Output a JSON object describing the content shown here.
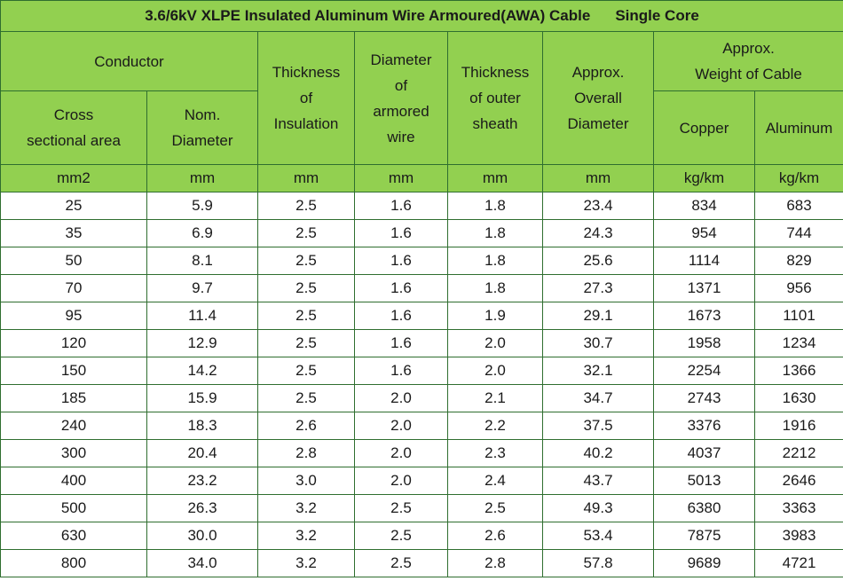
{
  "title": "3.6/6kV XLPE Insulated Aluminum Wire Armoured(AWA) Cable",
  "subtitle": "Single Core",
  "headers": {
    "conductor": "Conductor",
    "cross_sectional_area": [
      "Cross",
      "sectional area"
    ],
    "nom_diameter": [
      "Nom.",
      "Diameter"
    ],
    "thickness_insulation": [
      "Thickness",
      "of",
      "Insulation"
    ],
    "diameter_armored_wire": [
      "Diameter",
      "of",
      "armored",
      "wire"
    ],
    "thickness_outer_sheath": [
      "Thickness",
      "of outer",
      "sheath"
    ],
    "overall_diameter": [
      "Approx.",
      "Overall",
      "Diameter"
    ],
    "weight_of_cable": [
      "Approx.",
      "Weight of Cable"
    ],
    "copper": "Copper",
    "aluminum": "Aluminum"
  },
  "units": [
    "mm2",
    "mm",
    "mm",
    "mm",
    "mm",
    "mm",
    "kg/km",
    "kg/km"
  ],
  "rows": [
    [
      "25",
      "5.9",
      "2.5",
      "1.6",
      "1.8",
      "23.4",
      "834",
      "683"
    ],
    [
      "35",
      "6.9",
      "2.5",
      "1.6",
      "1.8",
      "24.3",
      "954",
      "744"
    ],
    [
      "50",
      "8.1",
      "2.5",
      "1.6",
      "1.8",
      "25.6",
      "1114",
      "829"
    ],
    [
      "70",
      "9.7",
      "2.5",
      "1.6",
      "1.8",
      "27.3",
      "1371",
      "956"
    ],
    [
      "95",
      "11.4",
      "2.5",
      "1.6",
      "1.9",
      "29.1",
      "1673",
      "1101"
    ],
    [
      "120",
      "12.9",
      "2.5",
      "1.6",
      "2.0",
      "30.7",
      "1958",
      "1234"
    ],
    [
      "150",
      "14.2",
      "2.5",
      "1.6",
      "2.0",
      "32.1",
      "2254",
      "1366"
    ],
    [
      "185",
      "15.9",
      "2.5",
      "2.0",
      "2.1",
      "34.7",
      "2743",
      "1630"
    ],
    [
      "240",
      "18.3",
      "2.6",
      "2.0",
      "2.2",
      "37.5",
      "3376",
      "1916"
    ],
    [
      "300",
      "20.4",
      "2.8",
      "2.0",
      "2.3",
      "40.2",
      "4037",
      "2212"
    ],
    [
      "400",
      "23.2",
      "3.0",
      "2.0",
      "2.4",
      "43.7",
      "5013",
      "2646"
    ],
    [
      "500",
      "26.3",
      "3.2",
      "2.5",
      "2.5",
      "49.3",
      "6380",
      "3363"
    ],
    [
      "630",
      "30.0",
      "3.2",
      "2.5",
      "2.6",
      "53.4",
      "7875",
      "3983"
    ],
    [
      "800",
      "34.0",
      "3.2",
      "2.5",
      "2.8",
      "57.8",
      "9689",
      "4721"
    ]
  ],
  "colors": {
    "header_bg": "#92d050",
    "border": "#2f6e2f",
    "text": "#1a1a1a"
  }
}
